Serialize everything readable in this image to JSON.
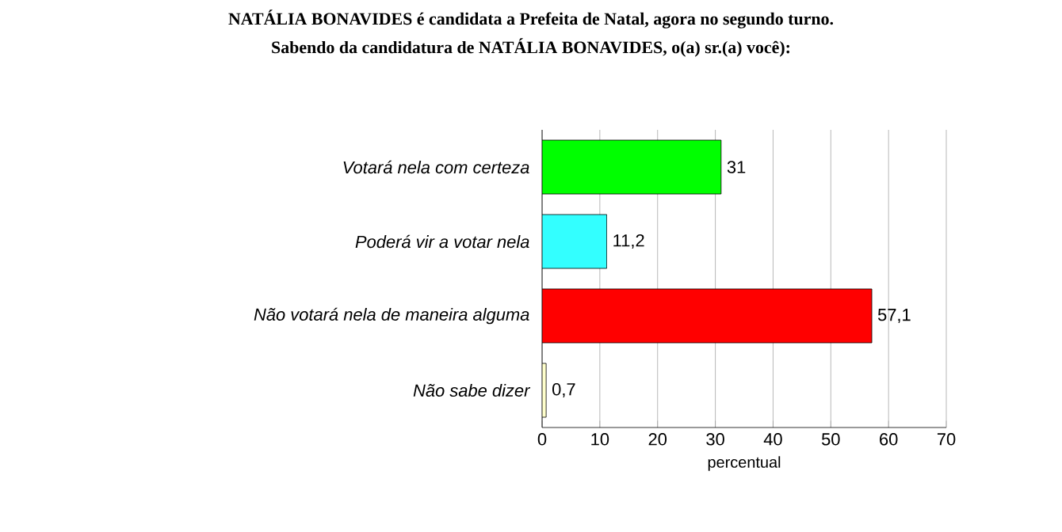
{
  "chart_data": {
    "type": "bar",
    "orientation": "horizontal",
    "title": "NATÁLIA BONAVIDES é candidata a Prefeita de Natal, agora no segundo turno.",
    "subtitle": "Sabendo da candidatura de NATÁLIA BONAVIDES, o(a) sr.(a) você):",
    "categories": [
      "Votará nela com certeza",
      "Poderá vir a votar nela",
      "Não votará nela de maneira alguma",
      "Não sabe dizer"
    ],
    "values": [
      31,
      11.2,
      57.1,
      0.7
    ],
    "colors": [
      "#00ff00",
      "#33ffff",
      "#ff0000",
      "#ffffcc"
    ],
    "value_labels": [
      "31",
      "11,2",
      "57,1",
      "0,7"
    ],
    "xlabel": "percentual",
    "xlim": [
      0,
      70
    ],
    "xticks": [
      0,
      10,
      20,
      30,
      40,
      50,
      60,
      70
    ],
    "grid": "x"
  }
}
